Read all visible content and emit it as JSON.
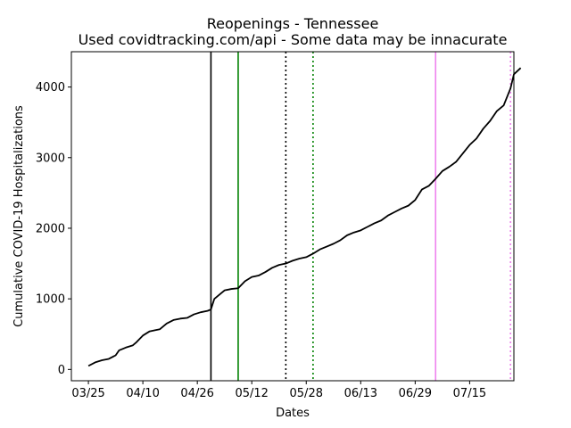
{
  "chart_data": {
    "type": "line",
    "title": "Reopenings - Tennessee",
    "subtitle": "Used covidtracking.com/api - Some data may be innacurate",
    "xlabel": "Dates",
    "ylabel": "Cumulative COVID-19 Hospitalizations",
    "x_tick_labels": [
      "03/25",
      "04/10",
      "04/26",
      "05/12",
      "05/28",
      "06/13",
      "06/29",
      "07/15"
    ],
    "y_ticks": [
      0,
      1000,
      2000,
      3000,
      4000
    ],
    "xlim": [
      "2020-03-20",
      "2020-07-28"
    ],
    "ylim": [
      -160,
      4500
    ],
    "grid": false,
    "series": [
      {
        "color": "#000000",
        "points": [
          [
            "2020-03-25",
            50
          ],
          [
            "2020-03-27",
            100
          ],
          [
            "2020-03-29",
            130
          ],
          [
            "2020-03-31",
            150
          ],
          [
            "2020-04-02",
            200
          ],
          [
            "2020-04-03",
            270
          ],
          [
            "2020-04-05",
            310
          ],
          [
            "2020-04-07",
            340
          ],
          [
            "2020-04-08",
            380
          ],
          [
            "2020-04-10",
            480
          ],
          [
            "2020-04-12",
            540
          ],
          [
            "2020-04-14",
            560
          ],
          [
            "2020-04-15",
            570
          ],
          [
            "2020-04-17",
            650
          ],
          [
            "2020-04-19",
            700
          ],
          [
            "2020-04-21",
            720
          ],
          [
            "2020-04-23",
            730
          ],
          [
            "2020-04-25",
            780
          ],
          [
            "2020-04-27",
            810
          ],
          [
            "2020-04-29",
            830
          ],
          [
            "2020-04-30",
            850
          ],
          [
            "2020-05-01",
            1000
          ],
          [
            "2020-05-03",
            1080
          ],
          [
            "2020-05-04",
            1120
          ],
          [
            "2020-05-06",
            1140
          ],
          [
            "2020-05-08",
            1150
          ],
          [
            "2020-05-10",
            1250
          ],
          [
            "2020-05-12",
            1310
          ],
          [
            "2020-05-14",
            1330
          ],
          [
            "2020-05-16",
            1380
          ],
          [
            "2020-05-18",
            1440
          ],
          [
            "2020-05-20",
            1480
          ],
          [
            "2020-05-22",
            1500
          ],
          [
            "2020-05-24",
            1540
          ],
          [
            "2020-05-26",
            1570
          ],
          [
            "2020-05-28",
            1590
          ],
          [
            "2020-05-30",
            1640
          ],
          [
            "2020-06-01",
            1700
          ],
          [
            "2020-06-03",
            1740
          ],
          [
            "2020-06-05",
            1780
          ],
          [
            "2020-06-07",
            1830
          ],
          [
            "2020-06-09",
            1900
          ],
          [
            "2020-06-11",
            1940
          ],
          [
            "2020-06-13",
            1970
          ],
          [
            "2020-06-15",
            2020
          ],
          [
            "2020-06-17",
            2070
          ],
          [
            "2020-06-19",
            2110
          ],
          [
            "2020-06-21",
            2180
          ],
          [
            "2020-06-23",
            2230
          ],
          [
            "2020-06-25",
            2280
          ],
          [
            "2020-06-27",
            2320
          ],
          [
            "2020-06-29",
            2400
          ],
          [
            "2020-07-01",
            2550
          ],
          [
            "2020-07-03",
            2600
          ],
          [
            "2020-07-05",
            2700
          ],
          [
            "2020-07-07",
            2810
          ],
          [
            "2020-07-09",
            2870
          ],
          [
            "2020-07-11",
            2940
          ],
          [
            "2020-07-13",
            3060
          ],
          [
            "2020-07-15",
            3180
          ],
          [
            "2020-07-17",
            3270
          ],
          [
            "2020-07-19",
            3410
          ],
          [
            "2020-07-21",
            3520
          ],
          [
            "2020-07-23",
            3660
          ],
          [
            "2020-07-25",
            3740
          ],
          [
            "2020-07-27",
            3980
          ],
          [
            "2020-07-28",
            4180
          ],
          [
            "2020-07-30",
            4270
          ]
        ]
      }
    ],
    "vertical_lines": [
      {
        "x": "2020-04-30",
        "color": "#000000",
        "style": "solid"
      },
      {
        "x": "2020-05-08",
        "color": "#008000",
        "style": "solid"
      },
      {
        "x": "2020-05-22",
        "color": "#000000",
        "style": "dotted"
      },
      {
        "x": "2020-05-30",
        "color": "#008000",
        "style": "dotted"
      },
      {
        "x": "2020-07-05",
        "color": "#ee82ee",
        "style": "solid"
      },
      {
        "x": "2020-07-27",
        "color": "#ee82ee",
        "style": "dotted"
      }
    ]
  }
}
